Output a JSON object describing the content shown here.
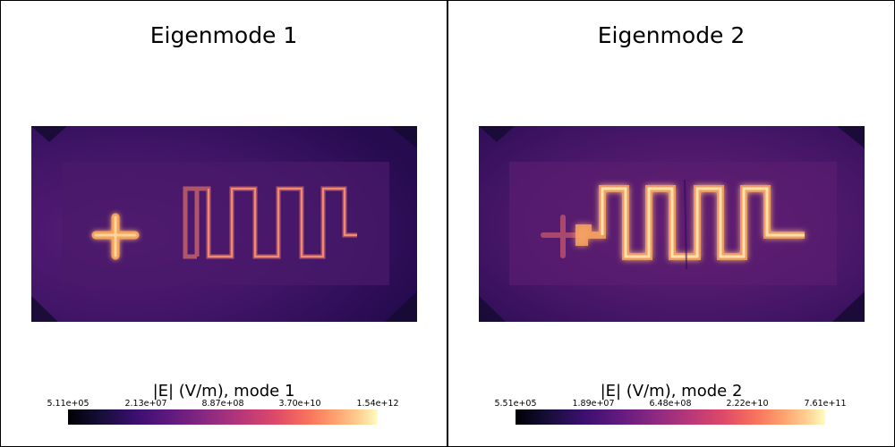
{
  "panels": [
    {
      "title": "Eigenmode 1",
      "colorbar": {
        "label": "|E| (V/m), mode 1",
        "ticks": [
          "5.11e+05",
          "2.13e+07",
          "8.87e+08",
          "3.70e+10",
          "1.54e+12"
        ],
        "colormap": "magma"
      }
    },
    {
      "title": "Eigenmode 2",
      "colorbar": {
        "label": "|E| (V/m), mode 2",
        "ticks": [
          "5.51e+05",
          "1.89e+07",
          "6.48e+08",
          "2.22e+10",
          "7.61e+11"
        ],
        "colormap": "magma"
      }
    }
  ],
  "colors": {
    "background_field": "#3b1460",
    "inner_region": "#4a1a6b",
    "hot_trace_mode1": "#f0a060",
    "hot_trace_mode2": "#fcd080",
    "frame": "#000000"
  }
}
